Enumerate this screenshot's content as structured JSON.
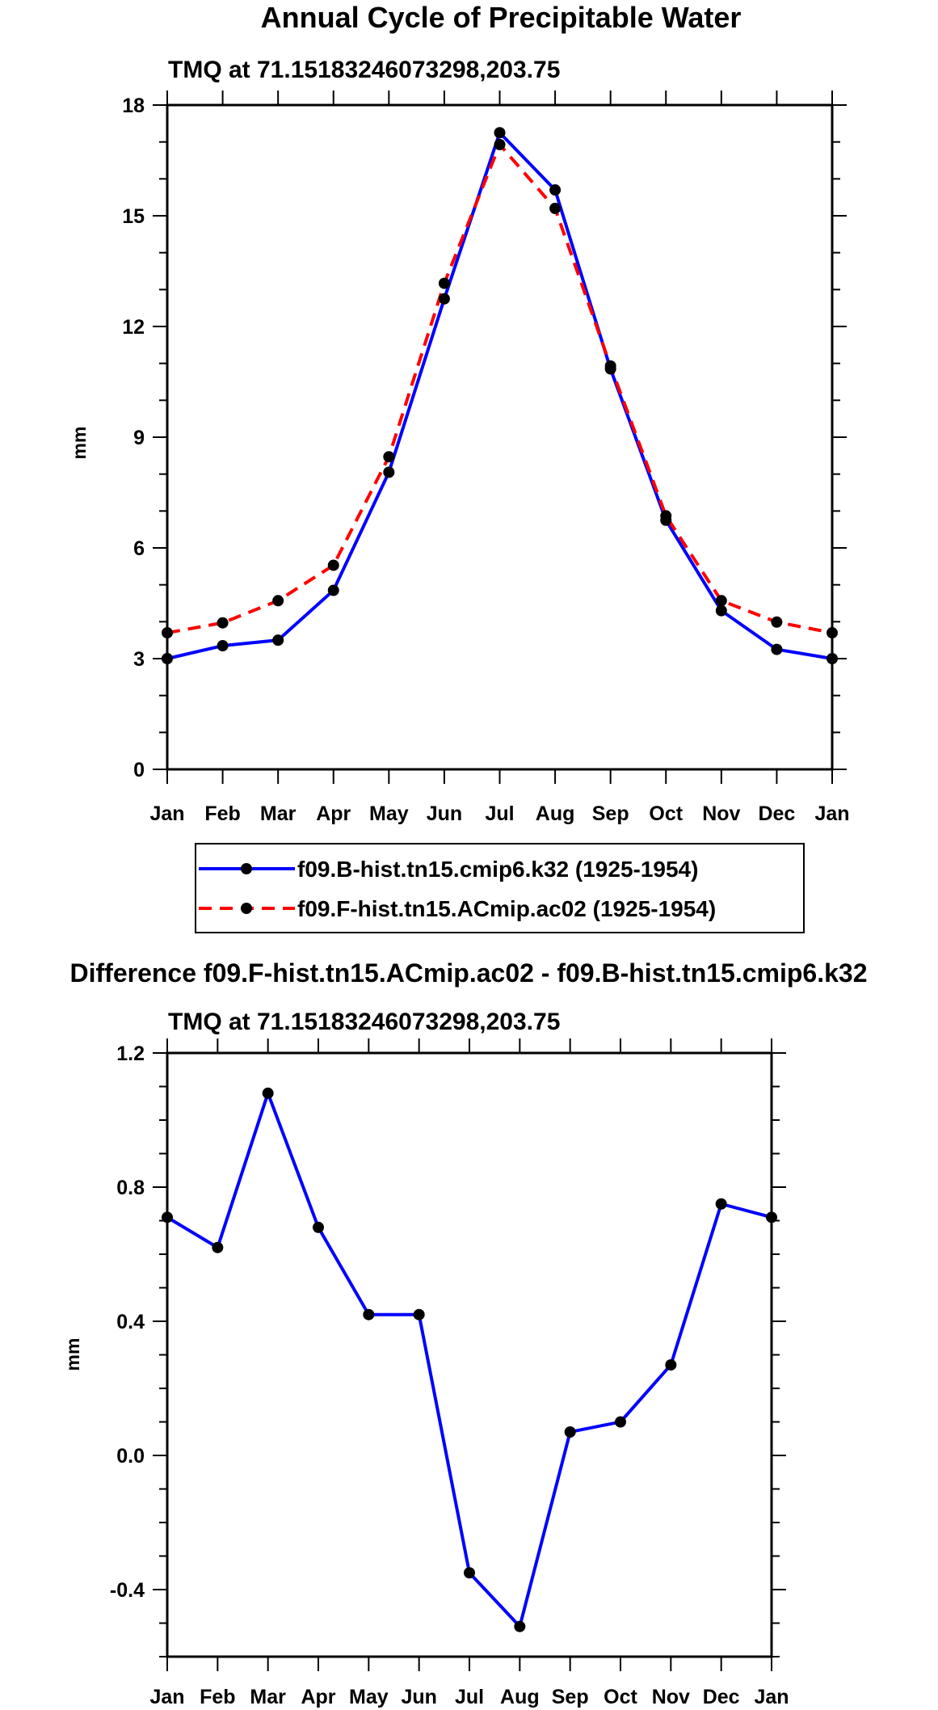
{
  "chart_data": [
    {
      "type": "line",
      "title": "Annual Cycle of Precipitable Water",
      "subtitle": "TMQ at 71.15183246073298,203.75",
      "xlabel": "",
      "ylabel": "mm",
      "categories": [
        "Jan",
        "Feb",
        "Mar",
        "Apr",
        "May",
        "Jun",
        "Jul",
        "Aug",
        "Sep",
        "Oct",
        "Nov",
        "Dec",
        "Jan"
      ],
      "ylim": [
        0,
        18
      ],
      "yticks": [
        0,
        3,
        6,
        9,
        12,
        15,
        18
      ],
      "yticks_labels": [
        "0",
        "3",
        "6",
        "9",
        "12",
        "15",
        "18"
      ],
      "series": [
        {
          "name": "f09.B-hist.tn15.cmip6.k32 (1925-1954)",
          "color": "#0000ff",
          "dash": "solid",
          "values": [
            3.0,
            3.35,
            3.5,
            4.85,
            8.05,
            12.75,
            17.25,
            15.7,
            10.85,
            6.75,
            4.3,
            3.25,
            3.0
          ]
        },
        {
          "name": "f09.F-hist.tn15.ACmip.ac02 (1925-1954)",
          "color": "#ff0000",
          "dash": "dashed",
          "values": [
            3.7,
            3.97,
            4.57,
            5.53,
            8.47,
            13.17,
            16.93,
            15.2,
            10.93,
            6.87,
            4.57,
            3.99,
            3.7
          ]
        }
      ],
      "legend": "below"
    },
    {
      "type": "line",
      "title": "Difference f09.F-hist.tn15.ACmip.ac02 - f09.B-hist.tn15.cmip6.k32",
      "subtitle": "TMQ at 71.15183246073298,203.75",
      "xlabel": "",
      "ylabel": "mm",
      "categories": [
        "Jan",
        "Feb",
        "Mar",
        "Apr",
        "May",
        "Jun",
        "Jul",
        "Aug",
        "Sep",
        "Oct",
        "Nov",
        "Dec",
        "Jan"
      ],
      "ylim": [
        -0.6,
        1.2
      ],
      "yticks": [
        -0.4,
        0.0,
        0.4,
        0.8,
        1.2
      ],
      "yticks_labels": [
        "-0.4",
        "0.0",
        "0.4",
        "0.8",
        "1.2"
      ],
      "series": [
        {
          "name": "difference",
          "color": "#0000ff",
          "dash": "solid",
          "values": [
            0.71,
            0.62,
            1.08,
            0.68,
            0.42,
            0.42,
            -0.35,
            -0.51,
            0.07,
            0.1,
            0.27,
            0.75,
            0.71
          ]
        }
      ]
    }
  ]
}
